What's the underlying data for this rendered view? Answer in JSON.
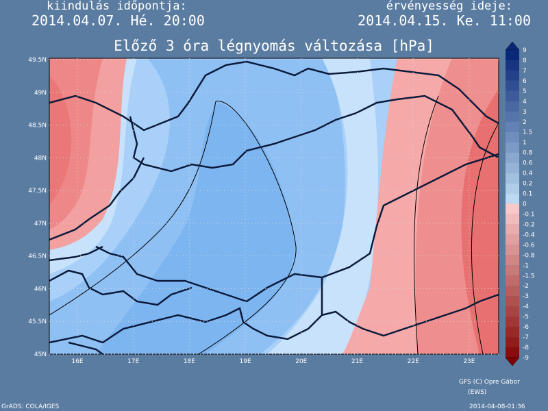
{
  "header": {
    "left_label": "kiindulás időpontja:",
    "left_time": "2014.04.07. Hé. 20:00",
    "right_label": "érvényesség ideje:",
    "right_time": "2014.04.15. Ke. 11:00",
    "title": "Előző 3 óra légnyomás változása [hPa]"
  },
  "map": {
    "lat_labels": [
      "49.5N",
      "49N",
      "48.5N",
      "48N",
      "47.5N",
      "47N",
      "46.5N",
      "46N",
      "45.5N",
      "45N"
    ],
    "lon_labels": [
      "16E",
      "17E",
      "18E",
      "19E",
      "20E",
      "21E",
      "22E",
      "23E"
    ]
  },
  "colorbar": {
    "labels": [
      "9",
      "8",
      "7",
      "6",
      "5",
      "4",
      "3",
      "2",
      "1.5",
      "1",
      "0.8",
      "0.6",
      "0.4",
      "0.2",
      "0.1",
      "0",
      "-0.1",
      "-0.2",
      "-0.4",
      "-0.6",
      "-0.8",
      "-1",
      "-1.5",
      "-2",
      "-3",
      "-4",
      "-5",
      "-6",
      "-7",
      "-8",
      "-9"
    ]
  },
  "footer": {
    "credit": "GFS (C) Opre Gábor",
    "credit_sub": "(EWS)",
    "software": "GrADS: COLA/IGES",
    "timestamp": "2014-04-08-01:36"
  }
}
